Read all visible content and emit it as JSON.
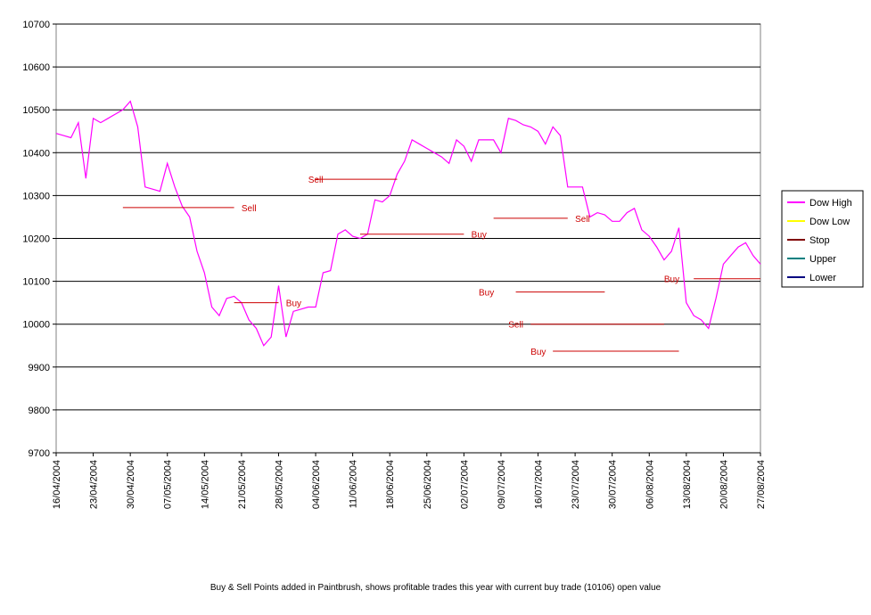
{
  "caption": "Buy & Sell Points added in Paintbrush, shows profitable trades this year with current buy trade (10106) open value",
  "chart_data": {
    "type": "line",
    "title": "",
    "xlabel": "",
    "ylabel": "",
    "ylim": [
      9700,
      10700
    ],
    "yticks": [
      9700,
      9800,
      9900,
      10000,
      10100,
      10200,
      10300,
      10400,
      10500,
      10600,
      10700
    ],
    "grid": "horizontal",
    "legend_position": "right",
    "x_tick_labels": [
      "16/04/2004",
      "23/04/2004",
      "30/04/2004",
      "07/05/2004",
      "14/05/2004",
      "21/05/2004",
      "28/05/2004",
      "04/06/2004",
      "11/06/2004",
      "18/06/2004",
      "25/06/2004",
      "02/07/2004",
      "09/07/2004",
      "16/07/2004",
      "23/07/2004",
      "30/07/2004",
      "06/08/2004",
      "13/08/2004",
      "20/08/2004",
      "27/08/2004"
    ],
    "x_count": 96,
    "series": [
      {
        "name": "Dow High",
        "color": "#ff00ff",
        "values": [
          10445,
          10440,
          10435,
          10470,
          10340,
          10480,
          10470,
          10480,
          10490,
          10500,
          10520,
          10460,
          10320,
          10315,
          10310,
          10375,
          10320,
          10275,
          10250,
          10170,
          10120,
          10040,
          10020,
          10060,
          10065,
          10050,
          10010,
          9990,
          9950,
          9970,
          10090,
          9970,
          10030,
          10035,
          10040,
          10040,
          10120,
          10125,
          10210,
          10220,
          10205,
          10200,
          10210,
          10290,
          10285,
          10300,
          10350,
          10380,
          10430,
          10420,
          10410,
          10400,
          10390,
          10375,
          10430,
          10415,
          10380,
          10430,
          10430,
          10430,
          10400,
          10480,
          10475,
          10465,
          10460,
          10450,
          10420,
          10460,
          10440,
          10320,
          10320,
          10320,
          10250,
          10260,
          10255,
          10240,
          10240,
          10260,
          10270,
          10220,
          10205,
          10180,
          10150,
          10170,
          10225,
          10050,
          10020,
          10010,
          9990,
          10060,
          10140,
          10160,
          10180,
          10190,
          10160,
          10140
        ]
      }
    ]
  },
  "legend": [
    {
      "name": "Dow High",
      "color": "#ff00ff"
    },
    {
      "name": "Dow Low",
      "color": "#ffff00"
    },
    {
      "name": "Stop",
      "color": "#800000"
    },
    {
      "name": "Upper",
      "color": "#008080"
    },
    {
      "name": "Lower",
      "color": "#000080"
    }
  ],
  "annotations": [
    {
      "label": "Sell",
      "x_idx": 25,
      "y": 10272,
      "line_from_idx": 9,
      "line_to_idx": 24
    },
    {
      "label": "Buy",
      "x_idx": 31,
      "y": 10050,
      "line_from_idx": 24,
      "line_to_idx": 30
    },
    {
      "label": "Sell",
      "x_idx": 34,
      "y": 10338,
      "line_from_idx": 35,
      "line_to_idx": 46
    },
    {
      "label": "Buy",
      "x_idx": 56,
      "y": 10210,
      "line_from_idx": 41,
      "line_to_idx": 55
    },
    {
      "label": "Sell",
      "x_idx": 70,
      "y": 10247,
      "line_from_idx": 59,
      "line_to_idx": 69
    },
    {
      "label": "Buy",
      "x_idx": 57,
      "y": 10075,
      "line_from_idx": 62,
      "line_to_idx": 74
    },
    {
      "label": "Sell",
      "x_idx": 61,
      "y": 10000,
      "line_from_idx": 64,
      "line_to_idx": 82
    },
    {
      "label": "Buy",
      "x_idx": 64,
      "y": 9937,
      "line_from_idx": 67,
      "line_to_idx": 84
    },
    {
      "label": "Buy",
      "x_idx": 82,
      "y": 10106,
      "line_from_idx": 86,
      "line_to_idx": 95
    }
  ]
}
